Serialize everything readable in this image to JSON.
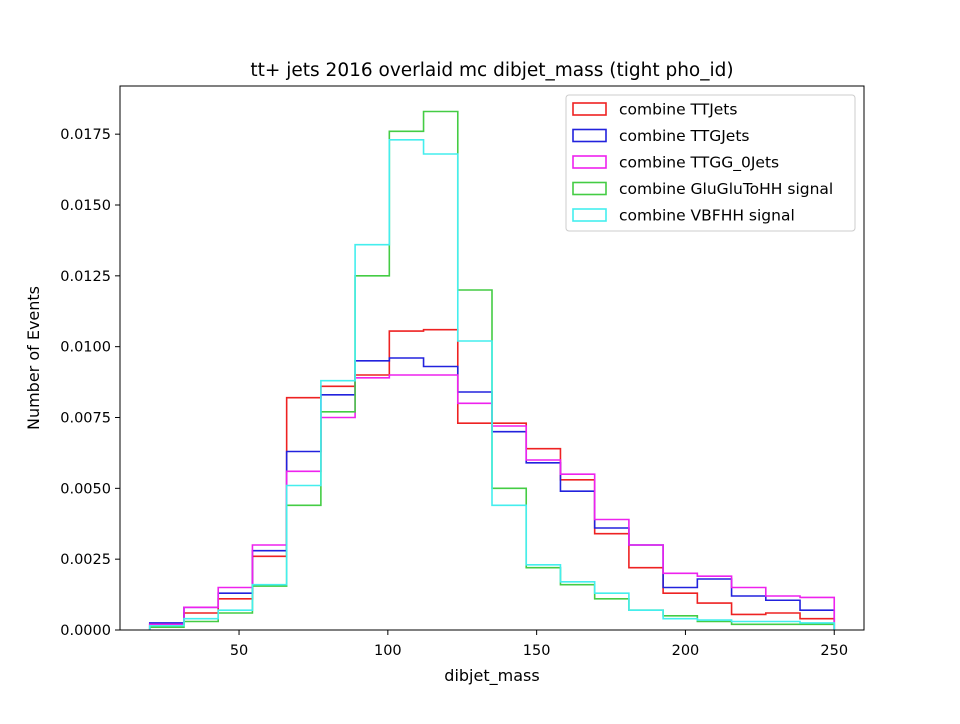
{
  "chart_data": {
    "type": "step-histogram",
    "title": "tt+ jets 2016 overlaid mc dibjet_mass (tight pho_id)",
    "xlabel": "dibjet_mass",
    "ylabel": "Number of Events",
    "xlim": [
      10,
      260
    ],
    "ylim": [
      0,
      0.0192
    ],
    "xticks": [
      50,
      100,
      150,
      200,
      250
    ],
    "xtick_labels": [
      "50",
      "100",
      "150",
      "200",
      "250"
    ],
    "yticks": [
      0,
      0.0025,
      0.005,
      0.0075,
      0.01,
      0.0125,
      0.015,
      0.0175
    ],
    "ytick_labels": [
      "0.0000",
      "0.0025",
      "0.0050",
      "0.0075",
      "0.0100",
      "0.0125",
      "0.0150",
      "0.0175"
    ],
    "grid": false,
    "legend_position": "top-right",
    "bin_edges": [
      20,
      31.5,
      43,
      54.5,
      66,
      77.5,
      89,
      100.5,
      112,
      123.5,
      135,
      146.5,
      158,
      169.5,
      181,
      192.5,
      204,
      215.5,
      227,
      238.5,
      250
    ],
    "series": [
      {
        "name": "combine TTJets",
        "color": "#ee2222",
        "values": [
          0.0002,
          0.0006,
          0.0011,
          0.0026,
          0.0082,
          0.0086,
          0.009,
          0.01055,
          0.0106,
          0.0073,
          0.0073,
          0.0064,
          0.0053,
          0.0034,
          0.0022,
          0.0013,
          0.00095,
          0.00055,
          0.0006,
          0.0004
        ]
      },
      {
        "name": "combine TTGJets",
        "color": "#2222dd",
        "values": [
          0.00025,
          0.0008,
          0.0013,
          0.0028,
          0.0063,
          0.0083,
          0.0095,
          0.0096,
          0.0093,
          0.0084,
          0.007,
          0.0059,
          0.0049,
          0.0036,
          0.003,
          0.0015,
          0.0018,
          0.0012,
          0.00105,
          0.0007
        ]
      },
      {
        "name": "combine TTGG_0Jets",
        "color": "#ee22ee",
        "values": [
          0.0002,
          0.0008,
          0.0015,
          0.003,
          0.0056,
          0.0075,
          0.0089,
          0.009,
          0.009,
          0.008,
          0.0072,
          0.006,
          0.0055,
          0.0039,
          0.003,
          0.002,
          0.0019,
          0.0015,
          0.0012,
          0.00115
        ]
      },
      {
        "name": "combine GluGluToHH signal",
        "color": "#44cc44",
        "values": [
          0.0001,
          0.0003,
          0.0006,
          0.00155,
          0.0044,
          0.0077,
          0.0125,
          0.0176,
          0.0183,
          0.012,
          0.005,
          0.0022,
          0.0016,
          0.0011,
          0.0007,
          0.0005,
          0.0003,
          0.0002,
          0.0002,
          0.0002
        ]
      },
      {
        "name": "combine VBFHH signal",
        "color": "#44eeee",
        "values": [
          0.00015,
          0.0004,
          0.0007,
          0.0016,
          0.0051,
          0.0088,
          0.0136,
          0.0173,
          0.0168,
          0.0102,
          0.0044,
          0.0023,
          0.0017,
          0.0013,
          0.0007,
          0.0004,
          0.00035,
          0.0003,
          0.0003,
          0.00025
        ]
      }
    ]
  }
}
